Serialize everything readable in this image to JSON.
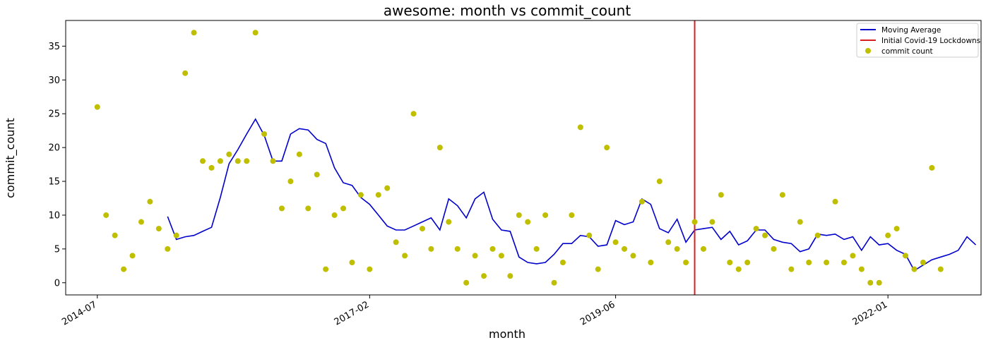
{
  "chart_data": {
    "type": "line",
    "title": "awesome: month vs commit_count",
    "xlabel": "month",
    "ylabel": "commit_count",
    "ylim": [
      -1.8,
      38.8
    ],
    "yticks": [
      0,
      5,
      10,
      15,
      20,
      25,
      30,
      35
    ],
    "x_start": "2014-07",
    "xlim_months": [
      -3.6,
      100.6
    ],
    "xticks": [
      {
        "label": "2014-07",
        "month": "2014-07"
      },
      {
        "label": "2017-02",
        "month": "2017-02"
      },
      {
        "label": "2019-06",
        "month": "2019-06"
      },
      {
        "label": "2022-01",
        "month": "2022-01"
      }
    ],
    "vline": {
      "month": "2020-03",
      "name": "Initial Covid-19 Lockdowns",
      "color": "#d62020"
    },
    "legend_position": "top-right",
    "series": [
      {
        "name": "Moving Average",
        "kind": "line",
        "color": "#0000cc",
        "x_start": "2015-03",
        "values": [
          9.8,
          6.4,
          6.8,
          7.0,
          7.6,
          8.2,
          12.6,
          17.6,
          19.7,
          22.0,
          24.2,
          21.8,
          18.0,
          18.0,
          22.0,
          22.8,
          22.6,
          21.2,
          20.6,
          17.0,
          14.8,
          14.4,
          12.6,
          11.6,
          10.0,
          8.4,
          7.8,
          7.8,
          8.4,
          9.0,
          9.6,
          7.8,
          12.4,
          11.4,
          9.6,
          12.4,
          13.4,
          9.4,
          7.8,
          7.6,
          3.8,
          3.0,
          2.8,
          3.0,
          4.2,
          5.8,
          5.8,
          7.0,
          6.8,
          5.4,
          5.6,
          9.2,
          8.6,
          9.0,
          12.4,
          11.6,
          8.0,
          7.4,
          9.4,
          6.0,
          7.8,
          8.0,
          8.2,
          6.4,
          7.6,
          5.6,
          6.2,
          7.8,
          7.8,
          6.4,
          6.0,
          5.8,
          4.6,
          5.0,
          7.2,
          7.0,
          7.2,
          6.4,
          6.8,
          4.8,
          6.8,
          5.6,
          5.8,
          4.8,
          4.2,
          1.8,
          2.6,
          3.4,
          3.8,
          4.2,
          4.8,
          6.8,
          5.6
        ]
      },
      {
        "name": "commit count",
        "kind": "scatter",
        "color": "#bfbf00",
        "x_start": "2014-07",
        "values": [
          26,
          10,
          7,
          2,
          4,
          9,
          12,
          8,
          5,
          7,
          31,
          37,
          18,
          17,
          18,
          19,
          18,
          18,
          37,
          22,
          18,
          11,
          15,
          19,
          11,
          16,
          2,
          10,
          11,
          3,
          13,
          2,
          13,
          14,
          6,
          4,
          25,
          8,
          5,
          20,
          9,
          5,
          0,
          4,
          1,
          5,
          4,
          1,
          10,
          9,
          5,
          10,
          0,
          3,
          10,
          23,
          7,
          2,
          20,
          6,
          5,
          4,
          12,
          3,
          15,
          6,
          5,
          3,
          9,
          5,
          9,
          13,
          3,
          2,
          3,
          8,
          7,
          5,
          13,
          2,
          9,
          3,
          7,
          3,
          12,
          3,
          4,
          2,
          0,
          0,
          7,
          8,
          4,
          2,
          3,
          17,
          2
        ]
      }
    ]
  }
}
